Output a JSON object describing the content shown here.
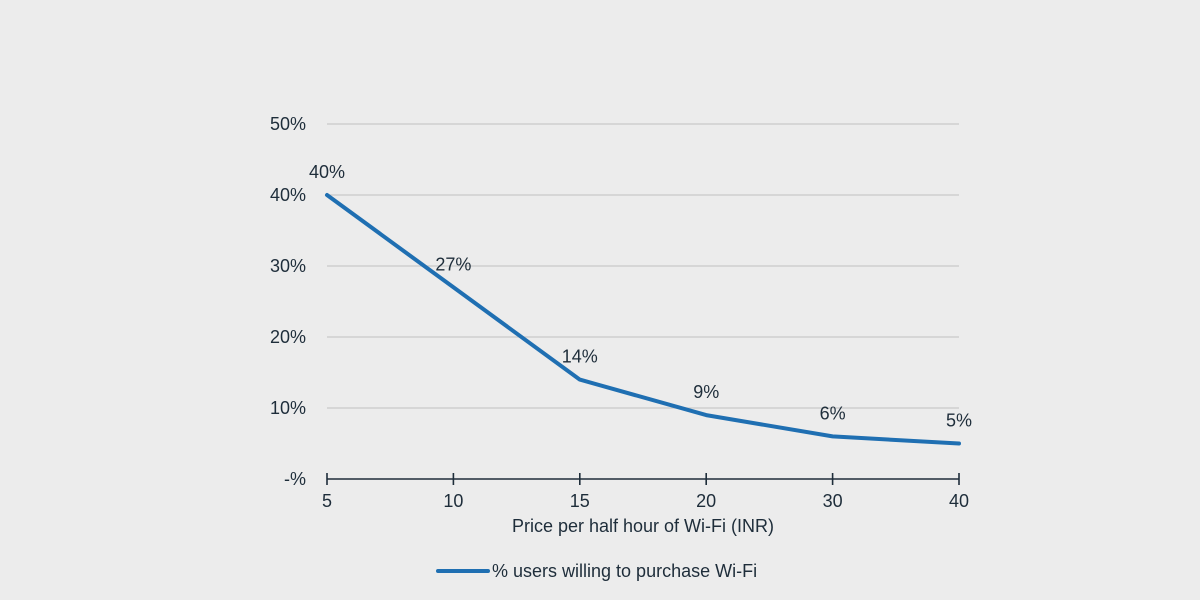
{
  "chart_data": {
    "type": "line",
    "categories": [
      "5",
      "10",
      "15",
      "20",
      "30",
      "40"
    ],
    "series": [
      {
        "name": "% users willing to purchase Wi-Fi",
        "values": [
          40,
          27,
          14,
          9,
          6,
          5
        ],
        "labels": [
          "40%",
          "27%",
          "14%",
          "9%",
          "6%",
          "5%"
        ]
      }
    ],
    "xlabel": "Price per half hour of Wi-Fi (INR)",
    "ylabel": "",
    "ylim": [
      0,
      50
    ],
    "yticks": [
      0,
      10,
      20,
      30,
      40,
      50
    ],
    "ytick_labels": [
      "-%",
      "10%",
      "20%",
      "30%",
      "40%",
      "50%"
    ],
    "grid": true,
    "legend": "bottom",
    "colors": {
      "line": "#1f6fb2",
      "grid": "#c8c8c8",
      "axis": "#1e2d3a",
      "background": "#ececec"
    }
  }
}
